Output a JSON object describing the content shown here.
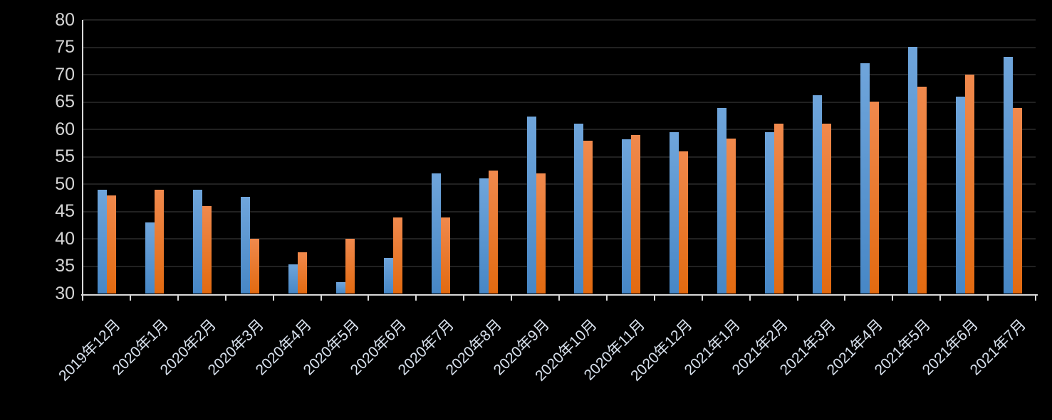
{
  "chart_data": {
    "type": "bar",
    "title": "",
    "xlabel": "",
    "ylabel": "",
    "categories": [
      "2019年12月",
      "2020年1月",
      "2020年2月",
      "2020年3月",
      "2020年4月",
      "2020年5月",
      "2020年6月",
      "2020年7月",
      "2020年8月",
      "2020年9月",
      "2020年10月",
      "2020年11月",
      "2020年12月",
      "2021年1月",
      "2021年2月",
      "2021年3月",
      "2021年4月",
      "2021年5月",
      "2021年6月",
      "2021年7月"
    ],
    "series": [
      {
        "name": "blue",
        "values": [
          49,
          43,
          49,
          47.7,
          35.4,
          32.2,
          36.6,
          52,
          51.1,
          62.4,
          61,
          58.2,
          59.5,
          63.9,
          59.5,
          66.2,
          72.1,
          75.1,
          66,
          73.3
        ]
      },
      {
        "name": "orange",
        "values": [
          48,
          49,
          46,
          40,
          37.6,
          40,
          44,
          44,
          52.5,
          52,
          58,
          59,
          56,
          58.4,
          61,
          61,
          65.1,
          67.8,
          70,
          63.9
        ]
      }
    ],
    "ylim": [
      30,
      80
    ],
    "ytick_step": 5,
    "yticks": [
      "80",
      "75",
      "70",
      "65",
      "60",
      "55",
      "50",
      "45",
      "40",
      "35",
      "30"
    ],
    "grid": true,
    "legend_position": "none",
    "x_label_rotation_deg": 45
  },
  "style": {
    "background": "#000000",
    "gridline_color": "#212121",
    "axis_color": "#D9D9D9",
    "y_label_color": "#D4D4D4",
    "x_label_color": "#D9E2EE",
    "series_colors": {
      "blue": {
        "top": "#6FA5DB",
        "bottom": "#4787C6"
      },
      "orange": {
        "top": "#F0894D",
        "bottom": "#E26A10"
      }
    }
  }
}
